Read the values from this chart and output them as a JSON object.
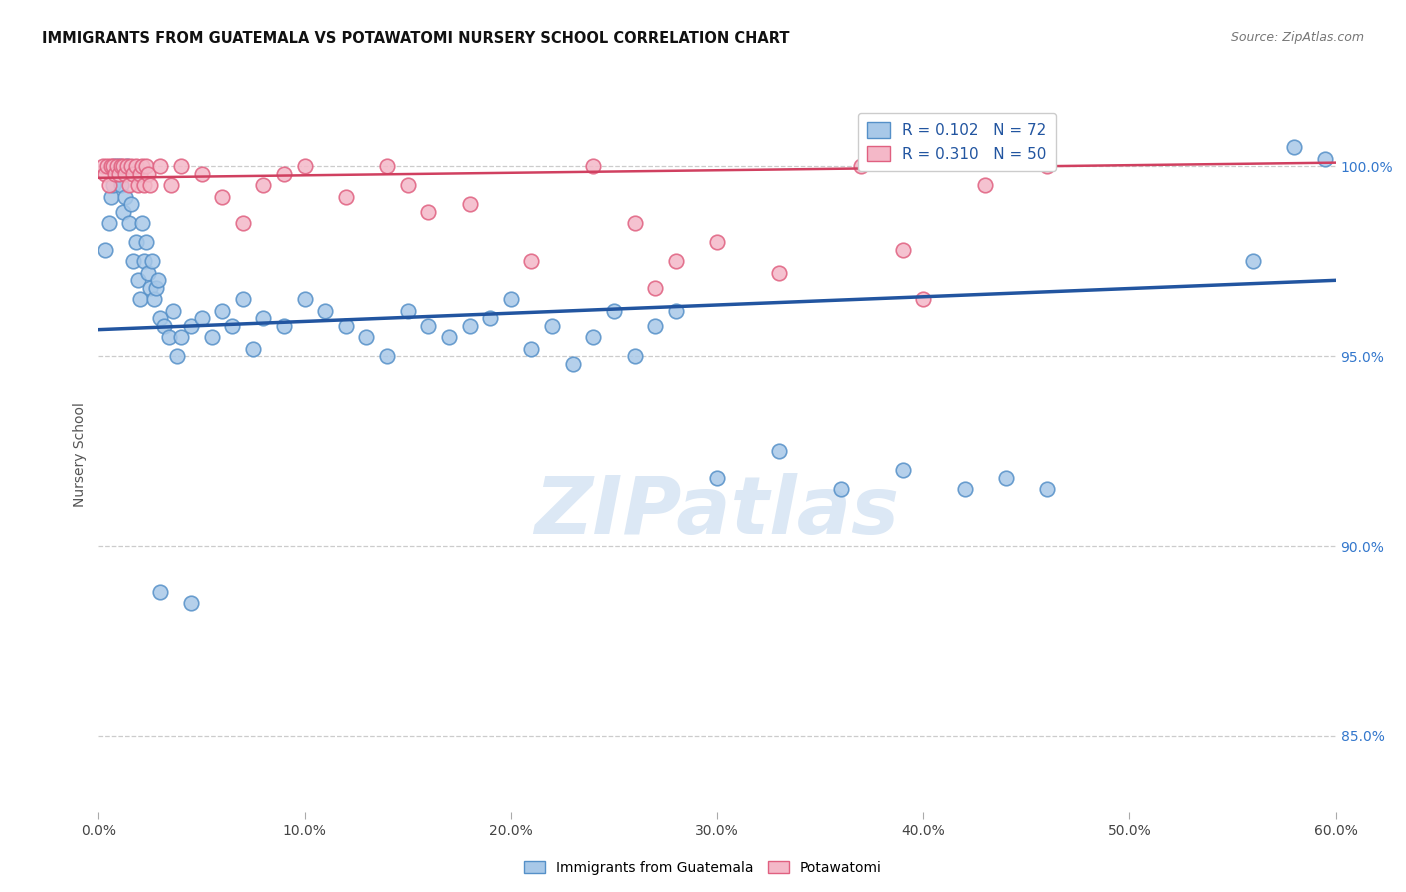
{
  "title": "IMMIGRANTS FROM GUATEMALA VS POTAWATOMI NURSERY SCHOOL CORRELATION CHART",
  "source": "Source: ZipAtlas.com",
  "ylabel": "Nursery School",
  "x_min": 0.0,
  "x_max": 60.0,
  "y_min": 83.0,
  "y_max": 101.8,
  "y_ticks": [
    85.0,
    90.0,
    95.0,
    100.0
  ],
  "x_ticks": [
    0.0,
    10.0,
    20.0,
    30.0,
    40.0,
    50.0,
    60.0
  ],
  "legend_blue_label": "R = 0.102   N = 72",
  "legend_pink_label": "R = 0.310   N = 50",
  "legend_bottom_blue": "Immigrants from Guatemala",
  "legend_bottom_pink": "Potawatomi",
  "blue_color": "#a8c8e8",
  "pink_color": "#f4b8c8",
  "blue_edge_color": "#5590c8",
  "pink_edge_color": "#e06080",
  "blue_line_color": "#2255a0",
  "pink_line_color": "#d04060",
  "watermark_color": "#dce8f5",
  "right_axis_color": "#3377cc",
  "blue_scatter_x": [
    0.3,
    0.5,
    0.6,
    0.7,
    0.8,
    0.9,
    1.0,
    1.1,
    1.2,
    1.3,
    1.4,
    1.5,
    1.6,
    1.7,
    1.8,
    1.9,
    2.0,
    2.1,
    2.2,
    2.3,
    2.4,
    2.5,
    2.6,
    2.7,
    2.8,
    2.9,
    3.0,
    3.2,
    3.4,
    3.6,
    3.8,
    4.0,
    4.5,
    5.0,
    5.5,
    6.0,
    6.5,
    7.0,
    7.5,
    8.0,
    9.0,
    10.0,
    11.0,
    12.0,
    13.0,
    14.0,
    15.0,
    16.0,
    17.0,
    18.0,
    19.0,
    20.0,
    21.0,
    22.0,
    23.0,
    24.0,
    25.0,
    26.0,
    27.0,
    28.0,
    30.0,
    33.0,
    36.0,
    39.0,
    42.0,
    44.0,
    46.0,
    56.0,
    58.0,
    59.5,
    3.0,
    4.5
  ],
  "blue_scatter_y": [
    97.8,
    98.5,
    99.2,
    99.5,
    100.0,
    99.8,
    100.0,
    99.5,
    98.8,
    99.2,
    100.0,
    98.5,
    99.0,
    97.5,
    98.0,
    97.0,
    96.5,
    98.5,
    97.5,
    98.0,
    97.2,
    96.8,
    97.5,
    96.5,
    96.8,
    97.0,
    96.0,
    95.8,
    95.5,
    96.2,
    95.0,
    95.5,
    95.8,
    96.0,
    95.5,
    96.2,
    95.8,
    96.5,
    95.2,
    96.0,
    95.8,
    96.5,
    96.2,
    95.8,
    95.5,
    95.0,
    96.2,
    95.8,
    95.5,
    95.8,
    96.0,
    96.5,
    95.2,
    95.8,
    94.8,
    95.5,
    96.2,
    95.0,
    95.8,
    96.2,
    91.8,
    92.5,
    91.5,
    92.0,
    91.5,
    91.8,
    91.5,
    97.5,
    100.5,
    100.2,
    88.8,
    88.5
  ],
  "pink_scatter_x": [
    0.2,
    0.3,
    0.4,
    0.5,
    0.6,
    0.7,
    0.8,
    0.9,
    1.0,
    1.1,
    1.2,
    1.3,
    1.4,
    1.5,
    1.6,
    1.7,
    1.8,
    1.9,
    2.0,
    2.1,
    2.2,
    2.3,
    2.4,
    2.5,
    3.0,
    3.5,
    4.0,
    5.0,
    6.0,
    7.0,
    8.0,
    9.0,
    10.0,
    12.0,
    14.0,
    15.0,
    16.0,
    18.0,
    21.0,
    24.0,
    26.0,
    27.0,
    28.0,
    30.0,
    33.0,
    37.0,
    39.0,
    40.0,
    43.0,
    46.0
  ],
  "pink_scatter_y": [
    100.0,
    99.8,
    100.0,
    99.5,
    100.0,
    100.0,
    99.8,
    100.0,
    99.8,
    100.0,
    100.0,
    99.8,
    100.0,
    99.5,
    100.0,
    99.8,
    100.0,
    99.5,
    99.8,
    100.0,
    99.5,
    100.0,
    99.8,
    99.5,
    100.0,
    99.5,
    100.0,
    99.8,
    99.2,
    98.5,
    99.5,
    99.8,
    100.0,
    99.2,
    100.0,
    99.5,
    98.8,
    99.0,
    97.5,
    100.0,
    98.5,
    96.8,
    97.5,
    98.0,
    97.2,
    100.0,
    97.8,
    96.5,
    99.5,
    100.0
  ],
  "blue_trend_x": [
    0.0,
    60.0
  ],
  "blue_trend_y": [
    95.7,
    97.0
  ],
  "pink_trend_x": [
    0.0,
    60.0
  ],
  "pink_trend_y": [
    99.7,
    100.1
  ]
}
